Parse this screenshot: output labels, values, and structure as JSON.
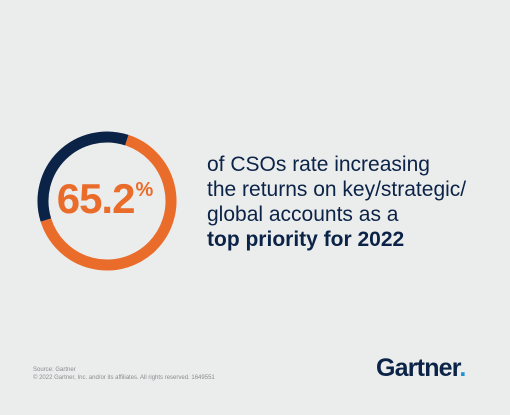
{
  "chart_data": {
    "type": "pie",
    "categories": [
      ""
    ],
    "values": [
      65.2
    ],
    "value_label": "65.2",
    "unit": "%",
    "ylim": [
      0,
      100
    ],
    "colors": {
      "filled": "#ea6c2b",
      "remainder": "#0b2347"
    }
  },
  "statement": {
    "line1": "of CSOs rate increasing",
    "line2": "the returns on key/strategic/",
    "line3": "global accounts as a",
    "line4_bold": "top priority for 2022"
  },
  "footer": {
    "source": "Source: Gartner",
    "copyright": "© 2022 Gartner, Inc. and/or its affiliates. All rights reserved. 1649551"
  },
  "logo": {
    "text": "Gartner",
    "dot": "."
  },
  "colors": {
    "background": "#ebecec",
    "navy": "#0b2347",
    "orange": "#ea6c2b",
    "logo_dot": "#1d8fd8"
  }
}
